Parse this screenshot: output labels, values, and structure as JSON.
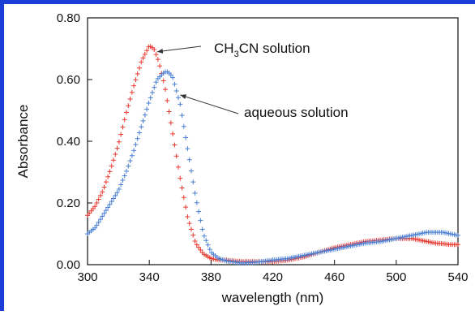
{
  "chart_data": {
    "type": "scatter",
    "title": "",
    "xlabel": "wavelength (nm)",
    "ylabel": "Absorbance",
    "xlim": [
      300,
      540
    ],
    "ylim": [
      0.0,
      0.8
    ],
    "x_ticks": [
      300,
      340,
      380,
      420,
      460,
      500,
      540
    ],
    "y_ticks": [
      "0.00",
      "0.20",
      "0.40",
      "0.60",
      "0.80"
    ],
    "y_tick_values": [
      0.0,
      0.2,
      0.4,
      0.6,
      0.8
    ],
    "grid": false,
    "legend": "none",
    "series": [
      {
        "color": "#e8382f",
        "x": [
          300,
          305,
          310,
          315,
          320,
          325,
          330,
          335,
          340,
          343,
          346,
          350,
          355,
          360,
          365,
          370,
          375,
          380,
          385,
          390,
          395,
          400,
          410,
          420,
          430,
          440,
          450,
          460,
          470,
          480,
          490,
          500,
          505,
          510,
          515,
          520,
          525,
          530,
          535,
          540
        ],
        "y": [
          0.16,
          0.19,
          0.24,
          0.31,
          0.39,
          0.49,
          0.58,
          0.66,
          0.71,
          0.7,
          0.66,
          0.58,
          0.43,
          0.28,
          0.15,
          0.07,
          0.035,
          0.02,
          0.015,
          0.015,
          0.012,
          0.01,
          0.01,
          0.01,
          0.015,
          0.025,
          0.04,
          0.055,
          0.065,
          0.075,
          0.08,
          0.085,
          0.085,
          0.085,
          0.08,
          0.075,
          0.07,
          0.068,
          0.065,
          0.065
        ]
      },
      {
        "color": "#4a7fd4",
        "x": [
          300,
          305,
          310,
          315,
          320,
          325,
          330,
          335,
          340,
          345,
          350,
          352,
          355,
          360,
          365,
          370,
          375,
          380,
          385,
          390,
          400,
          410,
          420,
          430,
          440,
          450,
          460,
          470,
          480,
          490,
          500,
          510,
          515,
          520,
          525,
          530,
          535,
          540
        ],
        "y": [
          0.1,
          0.12,
          0.16,
          0.2,
          0.24,
          0.3,
          0.37,
          0.45,
          0.53,
          0.6,
          0.625,
          0.625,
          0.61,
          0.52,
          0.37,
          0.22,
          0.1,
          0.04,
          0.02,
          0.012,
          0.005,
          0.008,
          0.015,
          0.02,
          0.03,
          0.04,
          0.05,
          0.06,
          0.07,
          0.075,
          0.085,
          0.095,
          0.1,
          0.105,
          0.105,
          0.105,
          0.1,
          0.095
        ]
      }
    ],
    "annotations": [
      {
        "text_main": "CH",
        "text_sub": "3",
        "text_rest": "CN solution",
        "tip_x": 343,
        "tip_y": 0.69
      },
      {
        "text_main": "aqueous solution",
        "text_sub": "",
        "text_rest": "",
        "tip_x": 358,
        "tip_y": 0.55
      }
    ]
  }
}
